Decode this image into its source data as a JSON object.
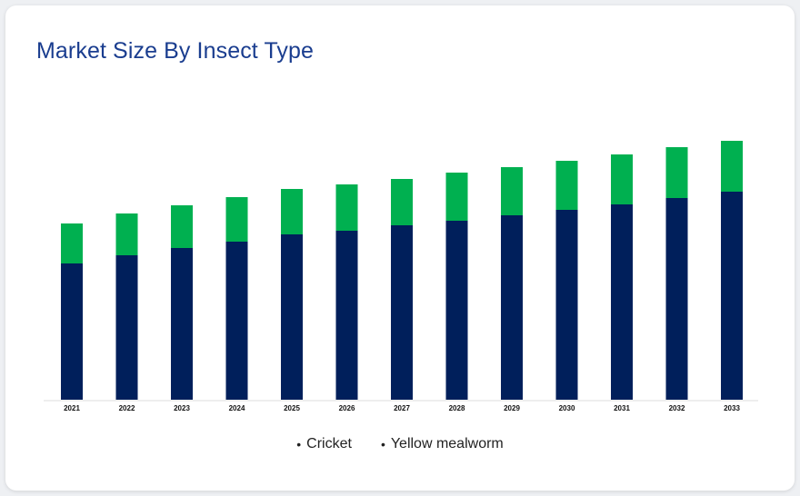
{
  "card": {
    "title": "Market Size By Insect Type"
  },
  "chart_data": {
    "type": "bar",
    "stacked": true,
    "title": "Market Size By Insect Type",
    "xlabel": "",
    "ylabel": "",
    "categories": [
      "2021",
      "2022",
      "2023",
      "2024",
      "2025",
      "2026",
      "2027",
      "2028",
      "2029",
      "2030",
      "2031",
      "2032",
      "2033"
    ],
    "series": [
      {
        "name": "Cricket",
        "color": "#001f5b",
        "values": [
          150,
          159,
          167,
          174,
          182,
          186,
          192,
          197,
          203,
          209,
          215,
          222,
          229
        ]
      },
      {
        "name": "Yellow mealworm",
        "color": "#00b050",
        "values": [
          44,
          46,
          47,
          49,
          50,
          51,
          51,
          53,
          53,
          54,
          55,
          56,
          56
        ]
      }
    ],
    "ylim": [
      0,
      300
    ],
    "grid": false,
    "legend_position": "bottom"
  }
}
